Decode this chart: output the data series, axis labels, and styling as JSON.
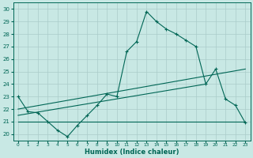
{
  "xlabel": "Humidex (Indice chaleur)",
  "bg_color": "#c8e8e4",
  "grid_color": "#aaccca",
  "line_color": "#006655",
  "xlim": [
    -0.5,
    23.5
  ],
  "ylim": [
    19.5,
    30.5
  ],
  "xticks": [
    0,
    1,
    2,
    3,
    4,
    5,
    6,
    7,
    8,
    9,
    10,
    11,
    12,
    13,
    14,
    15,
    16,
    17,
    18,
    19,
    20,
    21,
    22,
    23
  ],
  "yticks": [
    20,
    21,
    22,
    23,
    24,
    25,
    26,
    27,
    28,
    29,
    30
  ],
  "line1_x": [
    0,
    1,
    2,
    3,
    4,
    5,
    6,
    7,
    8,
    9,
    10,
    11,
    12,
    13,
    14,
    15,
    16,
    17,
    18,
    19,
    20,
    21,
    22,
    23
  ],
  "line1_y": [
    23.0,
    21.8,
    21.7,
    21.0,
    20.3,
    19.8,
    20.7,
    21.5,
    22.3,
    23.2,
    23.0,
    26.6,
    27.4,
    29.8,
    29.0,
    28.4,
    28.0,
    27.5,
    27.0,
    24.0,
    25.2,
    22.8,
    22.3,
    20.9
  ],
  "line2_x": [
    0,
    23
  ],
  "line2_y": [
    21.0,
    21.0
  ],
  "line3_x": [
    0,
    23
  ],
  "line3_y": [
    22.0,
    25.2
  ],
  "line4_x": [
    0,
    19
  ],
  "line4_y": [
    21.5,
    24.0
  ]
}
